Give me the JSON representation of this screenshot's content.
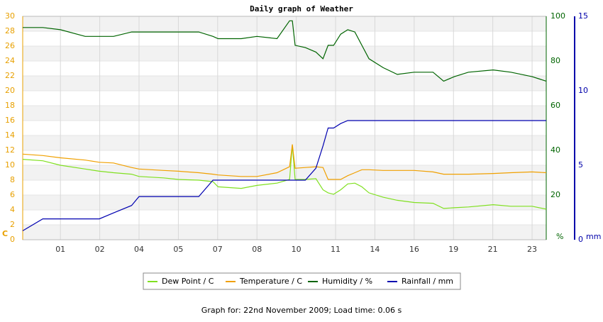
{
  "chart_data": {
    "type": "line",
    "title": "Daily graph of Weather",
    "footer": "Graph for: 22nd November 2009; Load time: 0.06 s",
    "x": [
      0.04,
      0.55,
      1,
      1.63,
      1.99,
      2.35,
      2.81,
      3.0,
      3.62,
      4.0,
      4.52,
      4.88,
      5.01,
      5.6,
      6.0,
      6.51,
      6.83,
      6.9,
      6.97,
      7.23,
      7.5,
      7.68,
      7.81,
      7.95,
      8.13,
      8.31,
      8.49,
      8.67,
      8.85,
      9.21,
      9.57,
      10.0,
      10.48,
      10.75,
      11.02,
      11.38,
      12.01,
      12.46,
      13.0,
      13.36
    ],
    "xlim": [
      0.04,
      13.36
    ],
    "xticks": [
      {
        "value": 1,
        "label": "01"
      },
      {
        "value": 2,
        "label": "02"
      },
      {
        "value": 3,
        "label": "04"
      },
      {
        "value": 4,
        "label": "05"
      },
      {
        "value": 5,
        "label": "07"
      },
      {
        "value": 6,
        "label": "08"
      },
      {
        "value": 7,
        "label": "10"
      },
      {
        "value": 8,
        "label": "11"
      },
      {
        "value": 9,
        "label": "14"
      },
      {
        "value": 10,
        "label": "16"
      },
      {
        "value": 11,
        "label": "19"
      },
      {
        "value": 12,
        "label": "21"
      },
      {
        "value": 13,
        "label": "23"
      }
    ],
    "ylim": [
      0,
      30
    ],
    "yticks": [
      0,
      2,
      4,
      6,
      8,
      10,
      12,
      14,
      16,
      18,
      20,
      22,
      24,
      26,
      28,
      30
    ],
    "y_unit": "C",
    "y_color": "#e8a000",
    "y2lim": [
      0,
      100
    ],
    "y2ticks": [
      20,
      40,
      60,
      80,
      100
    ],
    "y2_unit": "%",
    "y2_color": "#006400",
    "y3lim": [
      0,
      15
    ],
    "y3ticks": [
      0,
      5,
      10,
      15
    ],
    "y3_unit": "mm",
    "y3_color": "#0000aa",
    "grid": true,
    "series": [
      {
        "name": "Dew Point / C",
        "color": "#80e020",
        "values": [
          10.8,
          10.6,
          10.0,
          9.5,
          9.2,
          9.0,
          8.8,
          8.5,
          8.3,
          8.1,
          8.0,
          7.8,
          7.1,
          6.9,
          7.3,
          7.6,
          8.1,
          12.7,
          8.1,
          8.1,
          8.2,
          6.7,
          6.3,
          6.1,
          6.7,
          7.5,
          7.6,
          7.1,
          6.3,
          5.7,
          5.3,
          5.0,
          4.9,
          4.2,
          4.3,
          4.4,
          4.7,
          4.5,
          4.5,
          4.1
        ]
      },
      {
        "name": "Temperature / C",
        "color": "#f0a000",
        "values": [
          11.5,
          11.3,
          11.0,
          10.7,
          10.4,
          10.3,
          9.7,
          9.5,
          9.3,
          9.2,
          9.0,
          8.8,
          8.7,
          8.5,
          8.5,
          9.0,
          9.8,
          12.8,
          9.6,
          9.7,
          9.8,
          9.7,
          8.1,
          8.1,
          8.1,
          8.6,
          9.0,
          9.4,
          9.4,
          9.3,
          9.3,
          9.3,
          9.1,
          8.8,
          8.8,
          8.8,
          8.9,
          9.0,
          9.1,
          9.0
        ]
      },
      {
        "name": "Humidity / %",
        "color": "#006400",
        "axis": "y2",
        "values": [
          95,
          95,
          94,
          91,
          91,
          91,
          93,
          93,
          93,
          93,
          93,
          91,
          90,
          90,
          91,
          90,
          98,
          98,
          87,
          86,
          84,
          81,
          87,
          87,
          92,
          94,
          93,
          87,
          81,
          77,
          74,
          75,
          75,
          71,
          73,
          75,
          76,
          75,
          73,
          71
        ]
      },
      {
        "name": "Rainfall / mm",
        "color": "#0000b0",
        "axis": "y3",
        "values": [
          0.6,
          1.4,
          1.4,
          1.4,
          1.4,
          1.8,
          2.3,
          2.9,
          2.9,
          2.9,
          2.9,
          4.0,
          4.0,
          4.0,
          4.0,
          4.0,
          4.0,
          4.0,
          4.0,
          4.0,
          4.8,
          6.3,
          7.5,
          7.5,
          7.8,
          8.0,
          8.0,
          8.0,
          8.0,
          8.0,
          8.0,
          8.0,
          8.0,
          8.0,
          8.0,
          8.0,
          8.0,
          8.0,
          8.0,
          8.0
        ]
      }
    ]
  }
}
